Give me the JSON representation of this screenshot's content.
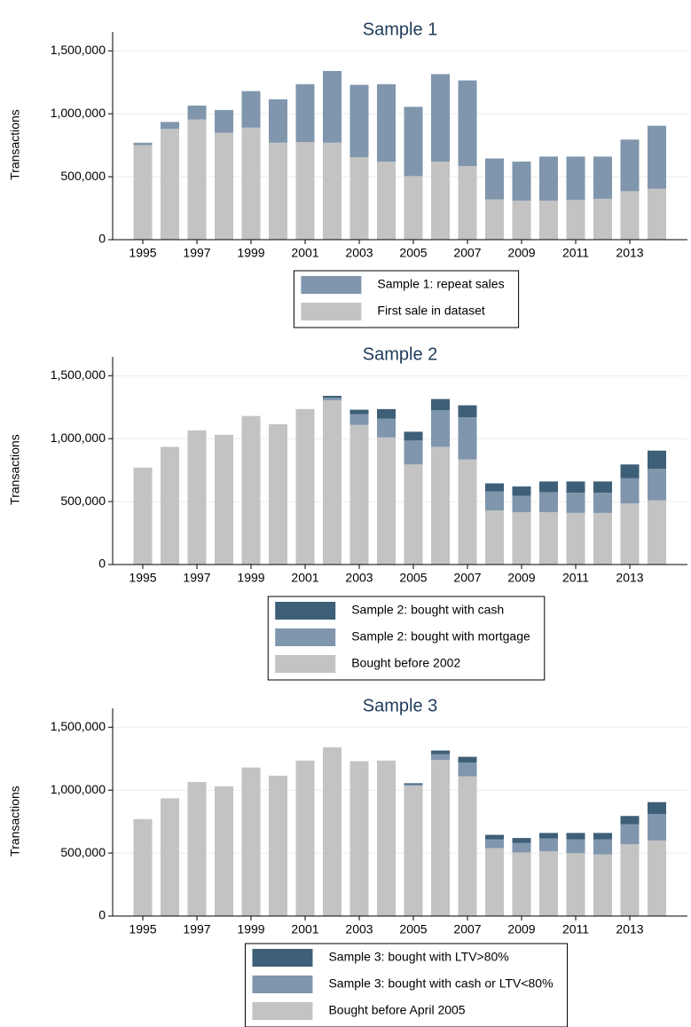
{
  "chart_data": [
    {
      "type": "bar",
      "stacked": true,
      "title": "Sample 1",
      "y_label": "Transactions",
      "categories": [
        "1995",
        null,
        "1997",
        null,
        "1999",
        null,
        "2001",
        null,
        "2003",
        null,
        "2005",
        null,
        "2007",
        null,
        "2009",
        null,
        "2011",
        null,
        "2013",
        null
      ],
      "ylim": [
        0,
        1650000
      ],
      "yticks": [
        0,
        {
          "value": 500000,
          "label": "500,000"
        },
        {
          "value": 1000000,
          "label": "1,000,000"
        },
        {
          "value": 1500000,
          "label": "1,500,000"
        }
      ],
      "grid": true,
      "series": [
        {
          "name": "Sample 1: repeat sales",
          "color": "#7f96ad",
          "values": [
            20000,
            55000,
            110000,
            180000,
            290000,
            345000,
            460000,
            570000,
            575000,
            615000,
            550000,
            695000,
            680000,
            325000,
            310000,
            350000,
            345000,
            335000,
            410000,
            500000
          ]
        },
        {
          "name": "First sale in dataset",
          "color": "#c3c3c3",
          "values": [
            750000,
            880000,
            955000,
            850000,
            890000,
            770000,
            775000,
            770000,
            655000,
            620000,
            505000,
            620000,
            585000,
            320000,
            310000,
            310000,
            315000,
            325000,
            385000,
            405000
          ]
        }
      ]
    },
    {
      "type": "bar",
      "stacked": true,
      "title": "Sample 2",
      "y_label": "Transactions",
      "categories": [
        "1995",
        null,
        "1997",
        null,
        "1999",
        null,
        "2001",
        null,
        "2003",
        null,
        "2005",
        null,
        "2007",
        null,
        "2009",
        null,
        "2011",
        null,
        "2013",
        null
      ],
      "ylim": [
        0,
        1650000
      ],
      "yticks": [
        0,
        {
          "value": 500000,
          "label": "500,000"
        },
        {
          "value": 1000000,
          "label": "1,000,000"
        },
        {
          "value": 1500000,
          "label": "1,500,000"
        }
      ],
      "grid": true,
      "series": [
        {
          "name": "Sample 2: bought with cash",
          "color": "#3e5f78",
          "values": [
            0,
            0,
            0,
            0,
            0,
            0,
            0,
            15000,
            35000,
            75000,
            70000,
            90000,
            95000,
            65000,
            75000,
            85000,
            90000,
            90000,
            110000,
            145000
          ]
        },
        {
          "name": "Sample 2: bought with mortgage",
          "color": "#7f96ad",
          "values": [
            0,
            0,
            0,
            0,
            0,
            0,
            0,
            20000,
            85000,
            150000,
            190000,
            290000,
            335000,
            150000,
            130000,
            160000,
            160000,
            160000,
            200000,
            250000
          ]
        },
        {
          "name": "Bought before 2002",
          "color": "#c3c3c3",
          "values": [
            770000,
            935000,
            1065000,
            1030000,
            1180000,
            1115000,
            1235000,
            1305000,
            1110000,
            1010000,
            795000,
            935000,
            835000,
            430000,
            415000,
            415000,
            410000,
            410000,
            485000,
            510000
          ]
        }
      ]
    },
    {
      "type": "bar",
      "stacked": true,
      "title": "Sample 3",
      "y_label": "Transactions",
      "categories": [
        "1995",
        null,
        "1997",
        null,
        "1999",
        null,
        "2001",
        null,
        "2003",
        null,
        "2005",
        null,
        "2007",
        null,
        "2009",
        null,
        "2011",
        null,
        "2013",
        null
      ],
      "ylim": [
        0,
        1650000
      ],
      "yticks": [
        0,
        {
          "value": 500000,
          "label": "500,000"
        },
        {
          "value": 1000000,
          "label": "1,000,000"
        },
        {
          "value": 1500000,
          "label": "1,500,000"
        }
      ],
      "grid": true,
      "series": [
        {
          "name": "Sample 3: bought with LTV>80%",
          "color": "#3e5f78",
          "values": [
            0,
            0,
            0,
            0,
            0,
            0,
            0,
            0,
            0,
            0,
            10000,
            30000,
            45000,
            35000,
            40000,
            45000,
            50000,
            50000,
            65000,
            95000
          ]
        },
        {
          "name": "Sample 3: bought with cash or LTV<80%",
          "color": "#7f96ad",
          "values": [
            0,
            0,
            0,
            0,
            0,
            0,
            0,
            0,
            0,
            0,
            10000,
            45000,
            110000,
            70000,
            75000,
            100000,
            110000,
            120000,
            160000,
            210000
          ]
        },
        {
          "name": "Bought before April 2005",
          "color": "#c3c3c3",
          "values": [
            770000,
            935000,
            1065000,
            1030000,
            1180000,
            1115000,
            1235000,
            1340000,
            1230000,
            1235000,
            1035000,
            1240000,
            1110000,
            540000,
            505000,
            515000,
            500000,
            490000,
            570000,
            600000
          ]
        }
      ]
    }
  ]
}
